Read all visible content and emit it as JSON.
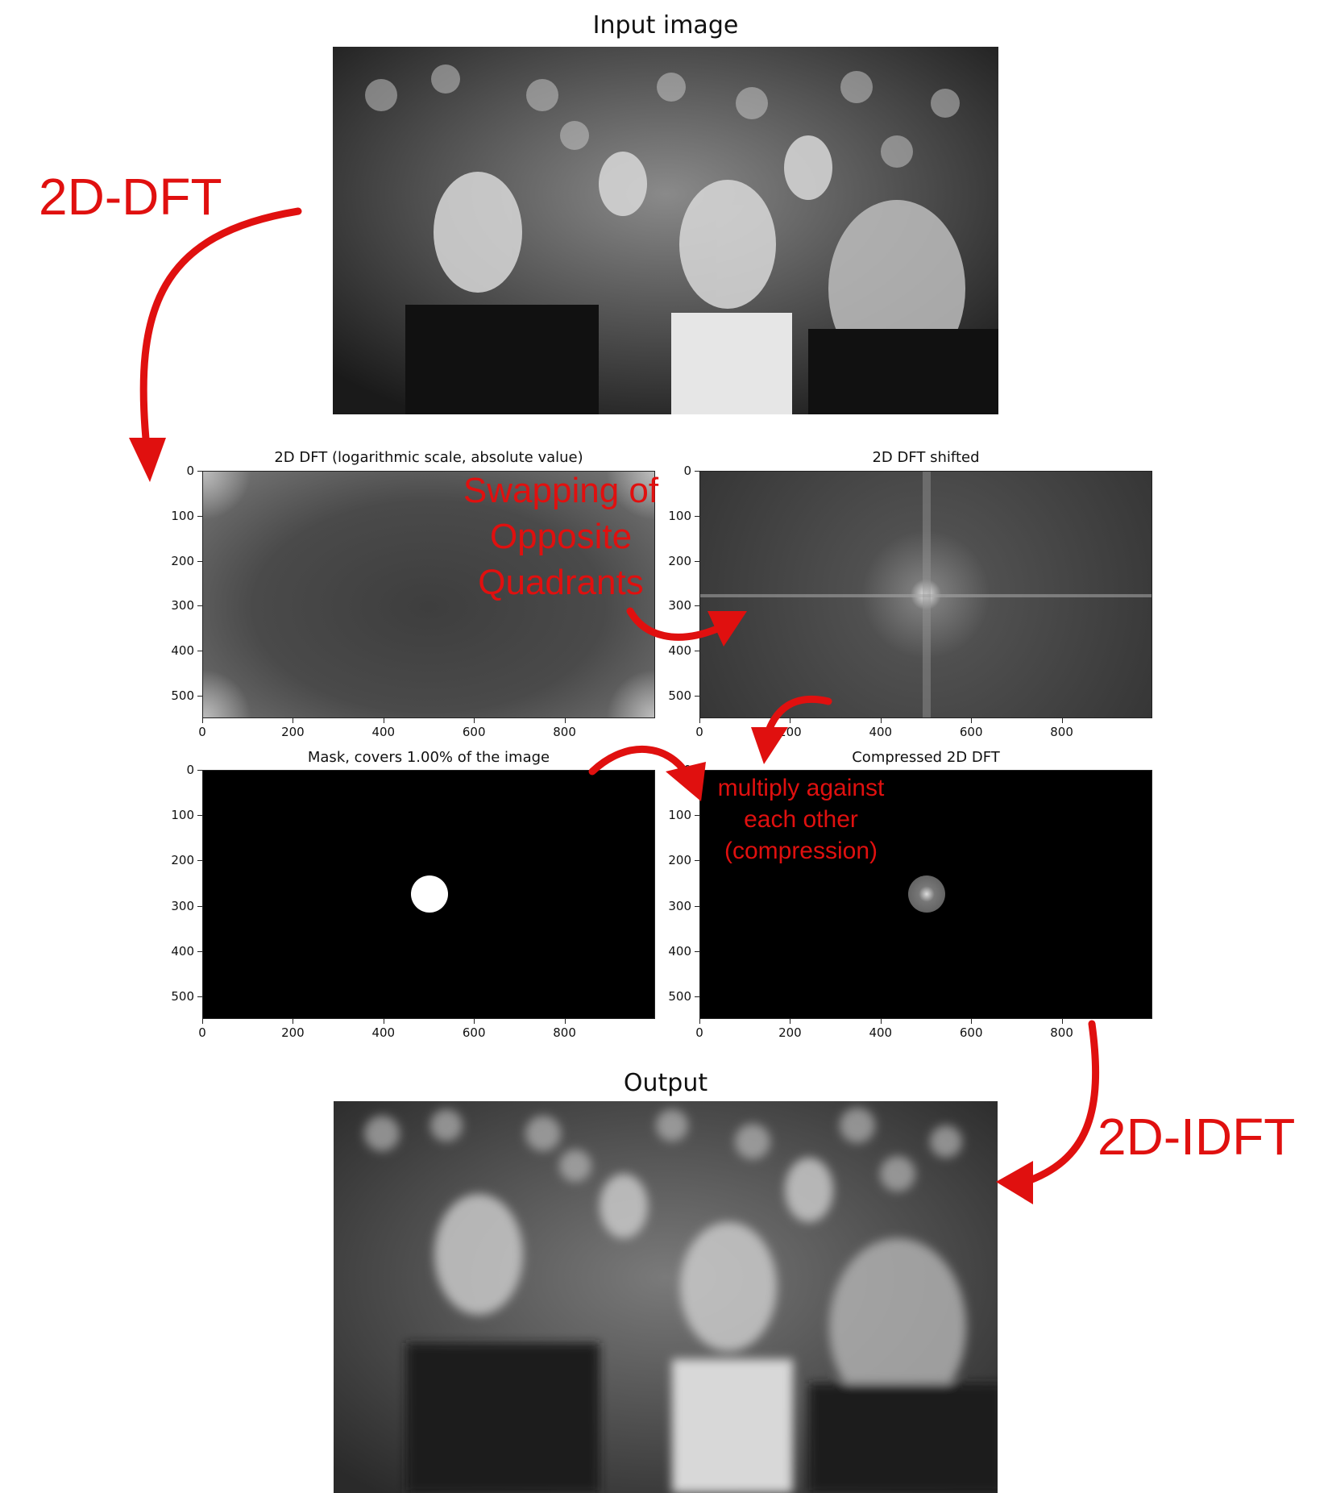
{
  "figure": {
    "input_title": "Input image",
    "output_title": "Output",
    "panels": [
      {
        "id": "dft",
        "title": "2D DFT (logarithmic scale, absolute value)"
      },
      {
        "id": "shifted",
        "title": "2D DFT shifted"
      },
      {
        "id": "mask",
        "title": "Mask, covers 1.00% of the image"
      },
      {
        "id": "compressed",
        "title": "Compressed 2D DFT"
      }
    ],
    "axis": {
      "y_ticks": [
        "0",
        "100",
        "200",
        "300",
        "400",
        "500"
      ],
      "x_ticks": [
        "0",
        "200",
        "400",
        "600",
        "800"
      ]
    }
  },
  "annotations": {
    "dft_label": "2D-DFT",
    "idft_label": "2D-IDFT",
    "swap_line1": "Swapping of",
    "swap_line2": "Opposite",
    "swap_line3": "Quadrants",
    "mult_line1": "multiply against",
    "mult_line2": "each other",
    "mult_line3": "(compression)"
  },
  "colors": {
    "annotation": "#e0100f",
    "mask_bg": "#000000",
    "mask_fg": "#ffffff"
  }
}
